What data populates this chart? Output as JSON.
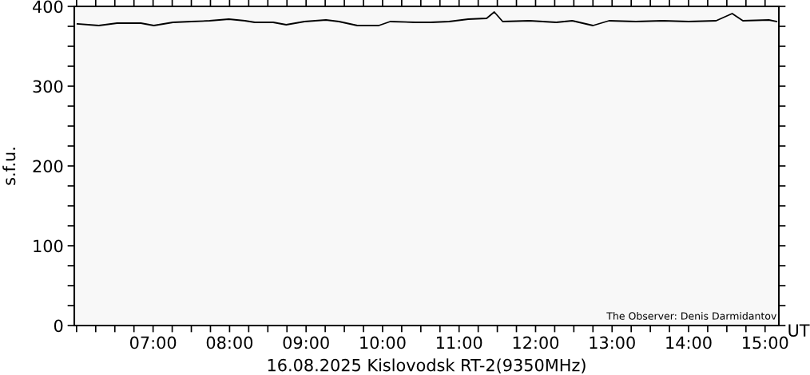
{
  "chart_data": {
    "type": "line",
    "title": "16.08.2025 Kislovodsk RT-2(9350MHz)",
    "xlabel": "UT",
    "ylabel": "s.f.u.",
    "annotations": [
      "The Observer: Denis Darmidantov"
    ],
    "x": [
      6.01,
      6.29,
      6.53,
      6.84,
      7.01,
      7.26,
      7.5,
      7.74,
      7.99,
      8.2,
      8.33,
      8.57,
      8.74,
      8.98,
      9.26,
      9.43,
      9.67,
      9.95,
      10.1,
      10.43,
      10.63,
      10.87,
      11.12,
      11.36,
      11.46,
      11.57,
      11.92,
      12.27,
      12.48,
      12.75,
      12.96,
      13.31,
      13.66,
      14.0,
      14.36,
      14.57,
      14.71,
      15.05,
      15.15
    ],
    "series": [
      {
        "color": "#000000",
        "values": [
          378,
          376,
          379,
          379,
          376,
          380,
          381,
          382,
          384,
          382,
          380,
          380,
          377,
          381,
          383,
          381,
          376,
          376,
          381,
          380,
          380,
          381,
          384,
          385,
          393,
          381,
          382,
          380,
          382,
          376,
          382,
          381,
          382,
          381,
          382,
          391,
          382,
          383,
          381
        ]
      }
    ],
    "xlim": [
      5.97,
      15.18
    ],
    "xticks": [
      {
        "value": 6.0,
        "label": null
      },
      {
        "value": 6.25,
        "label": null
      },
      {
        "value": 6.5,
        "label": null
      },
      {
        "value": 6.75,
        "label": null
      },
      {
        "value": 7,
        "label": "07:00"
      },
      {
        "value": 7.25,
        "label": null
      },
      {
        "value": 7.5,
        "label": null
      },
      {
        "value": 7.75,
        "label": null
      },
      {
        "value": 8,
        "label": "08:00"
      },
      {
        "value": 8.25,
        "label": null
      },
      {
        "value": 8.5,
        "label": null
      },
      {
        "value": 8.75,
        "label": null
      },
      {
        "value": 9,
        "label": "09:00"
      },
      {
        "value": 9.25,
        "label": null
      },
      {
        "value": 9.5,
        "label": null
      },
      {
        "value": 9.75,
        "label": null
      },
      {
        "value": 10,
        "label": "10:00"
      },
      {
        "value": 10.25,
        "label": null
      },
      {
        "value": 10.5,
        "label": null
      },
      {
        "value": 10.75,
        "label": null
      },
      {
        "value": 11,
        "label": "11:00"
      },
      {
        "value": 11.25,
        "label": null
      },
      {
        "value": 11.5,
        "label": null
      },
      {
        "value": 11.75,
        "label": null
      },
      {
        "value": 12,
        "label": "12:00"
      },
      {
        "value": 12.25,
        "label": null
      },
      {
        "value": 12.5,
        "label": null
      },
      {
        "value": 12.75,
        "label": null
      },
      {
        "value": 13,
        "label": "13:00"
      },
      {
        "value": 13.25,
        "label": null
      },
      {
        "value": 13.5,
        "label": null
      },
      {
        "value": 13.75,
        "label": null
      },
      {
        "value": 14,
        "label": "14:00"
      },
      {
        "value": 14.25,
        "label": null
      },
      {
        "value": 14.5,
        "label": null
      },
      {
        "value": 14.75,
        "label": null
      },
      {
        "value": 15,
        "label": "15:00"
      }
    ],
    "ylim": [
      0,
      400
    ],
    "yticks": [
      0,
      {
        "value": 25,
        "label": null
      },
      {
        "value": 50,
        "label": null
      },
      {
        "value": 75,
        "label": null
      },
      100,
      {
        "value": 125,
        "label": null
      },
      {
        "value": 150,
        "label": null
      },
      {
        "value": 175,
        "label": null
      },
      200,
      {
        "value": 225,
        "label": null
      },
      {
        "value": 250,
        "label": null
      },
      {
        "value": 275,
        "label": null
      },
      300,
      {
        "value": 325,
        "label": null
      },
      {
        "value": 350,
        "label": null
      },
      {
        "value": 375,
        "label": null
      },
      400
    ],
    "grid": false,
    "legend": false,
    "marker": "none",
    "line_style": "solid"
  }
}
